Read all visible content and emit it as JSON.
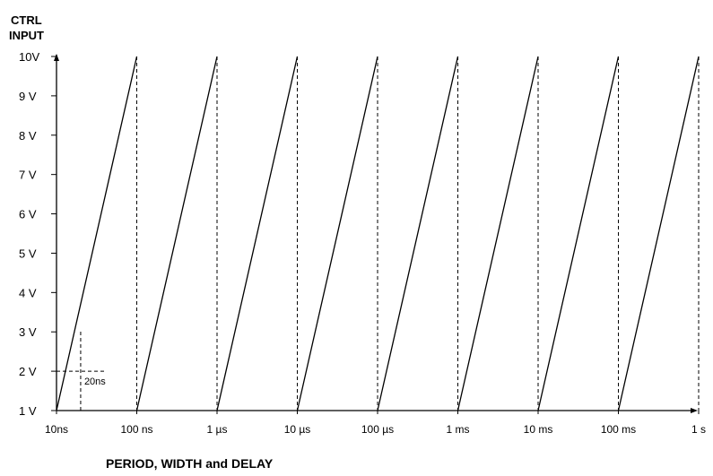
{
  "chart_data": {
    "type": "line",
    "title": "",
    "ylabel_line1": "CTRL",
    "ylabel_line2": "INPUT",
    "xlabel": "PERIOD, WIDTH and DELAY",
    "ylim": [
      1,
      10
    ],
    "y_ticks": [
      "1 V",
      "2 V",
      "3 V",
      "4 V",
      "5 V",
      "6 V",
      "7 V",
      "8 V",
      "9 V",
      "10V"
    ],
    "x_ticks": [
      "10ns",
      "100 ns",
      "1 µs",
      "10 µs",
      "100 µs",
      "1 ms",
      "10 ms",
      "100 ms",
      "1 s"
    ],
    "x_scale": "log",
    "ramps": [
      {
        "start": "10ns",
        "end": "100 ns"
      },
      {
        "start": "100 ns",
        "end": "1 µs"
      },
      {
        "start": "1 µs",
        "end": "10 µs"
      },
      {
        "start": "10 µs",
        "end": "100 µs"
      },
      {
        "start": "100 µs",
        "end": "1 ms"
      },
      {
        "start": "1 ms",
        "end": "10 ms"
      },
      {
        "start": "10 ms",
        "end": "100 ms"
      },
      {
        "start": "100 ms",
        "end": "1 s"
      }
    ],
    "annotation": {
      "text": "20ns",
      "at_voltage": 2
    }
  }
}
